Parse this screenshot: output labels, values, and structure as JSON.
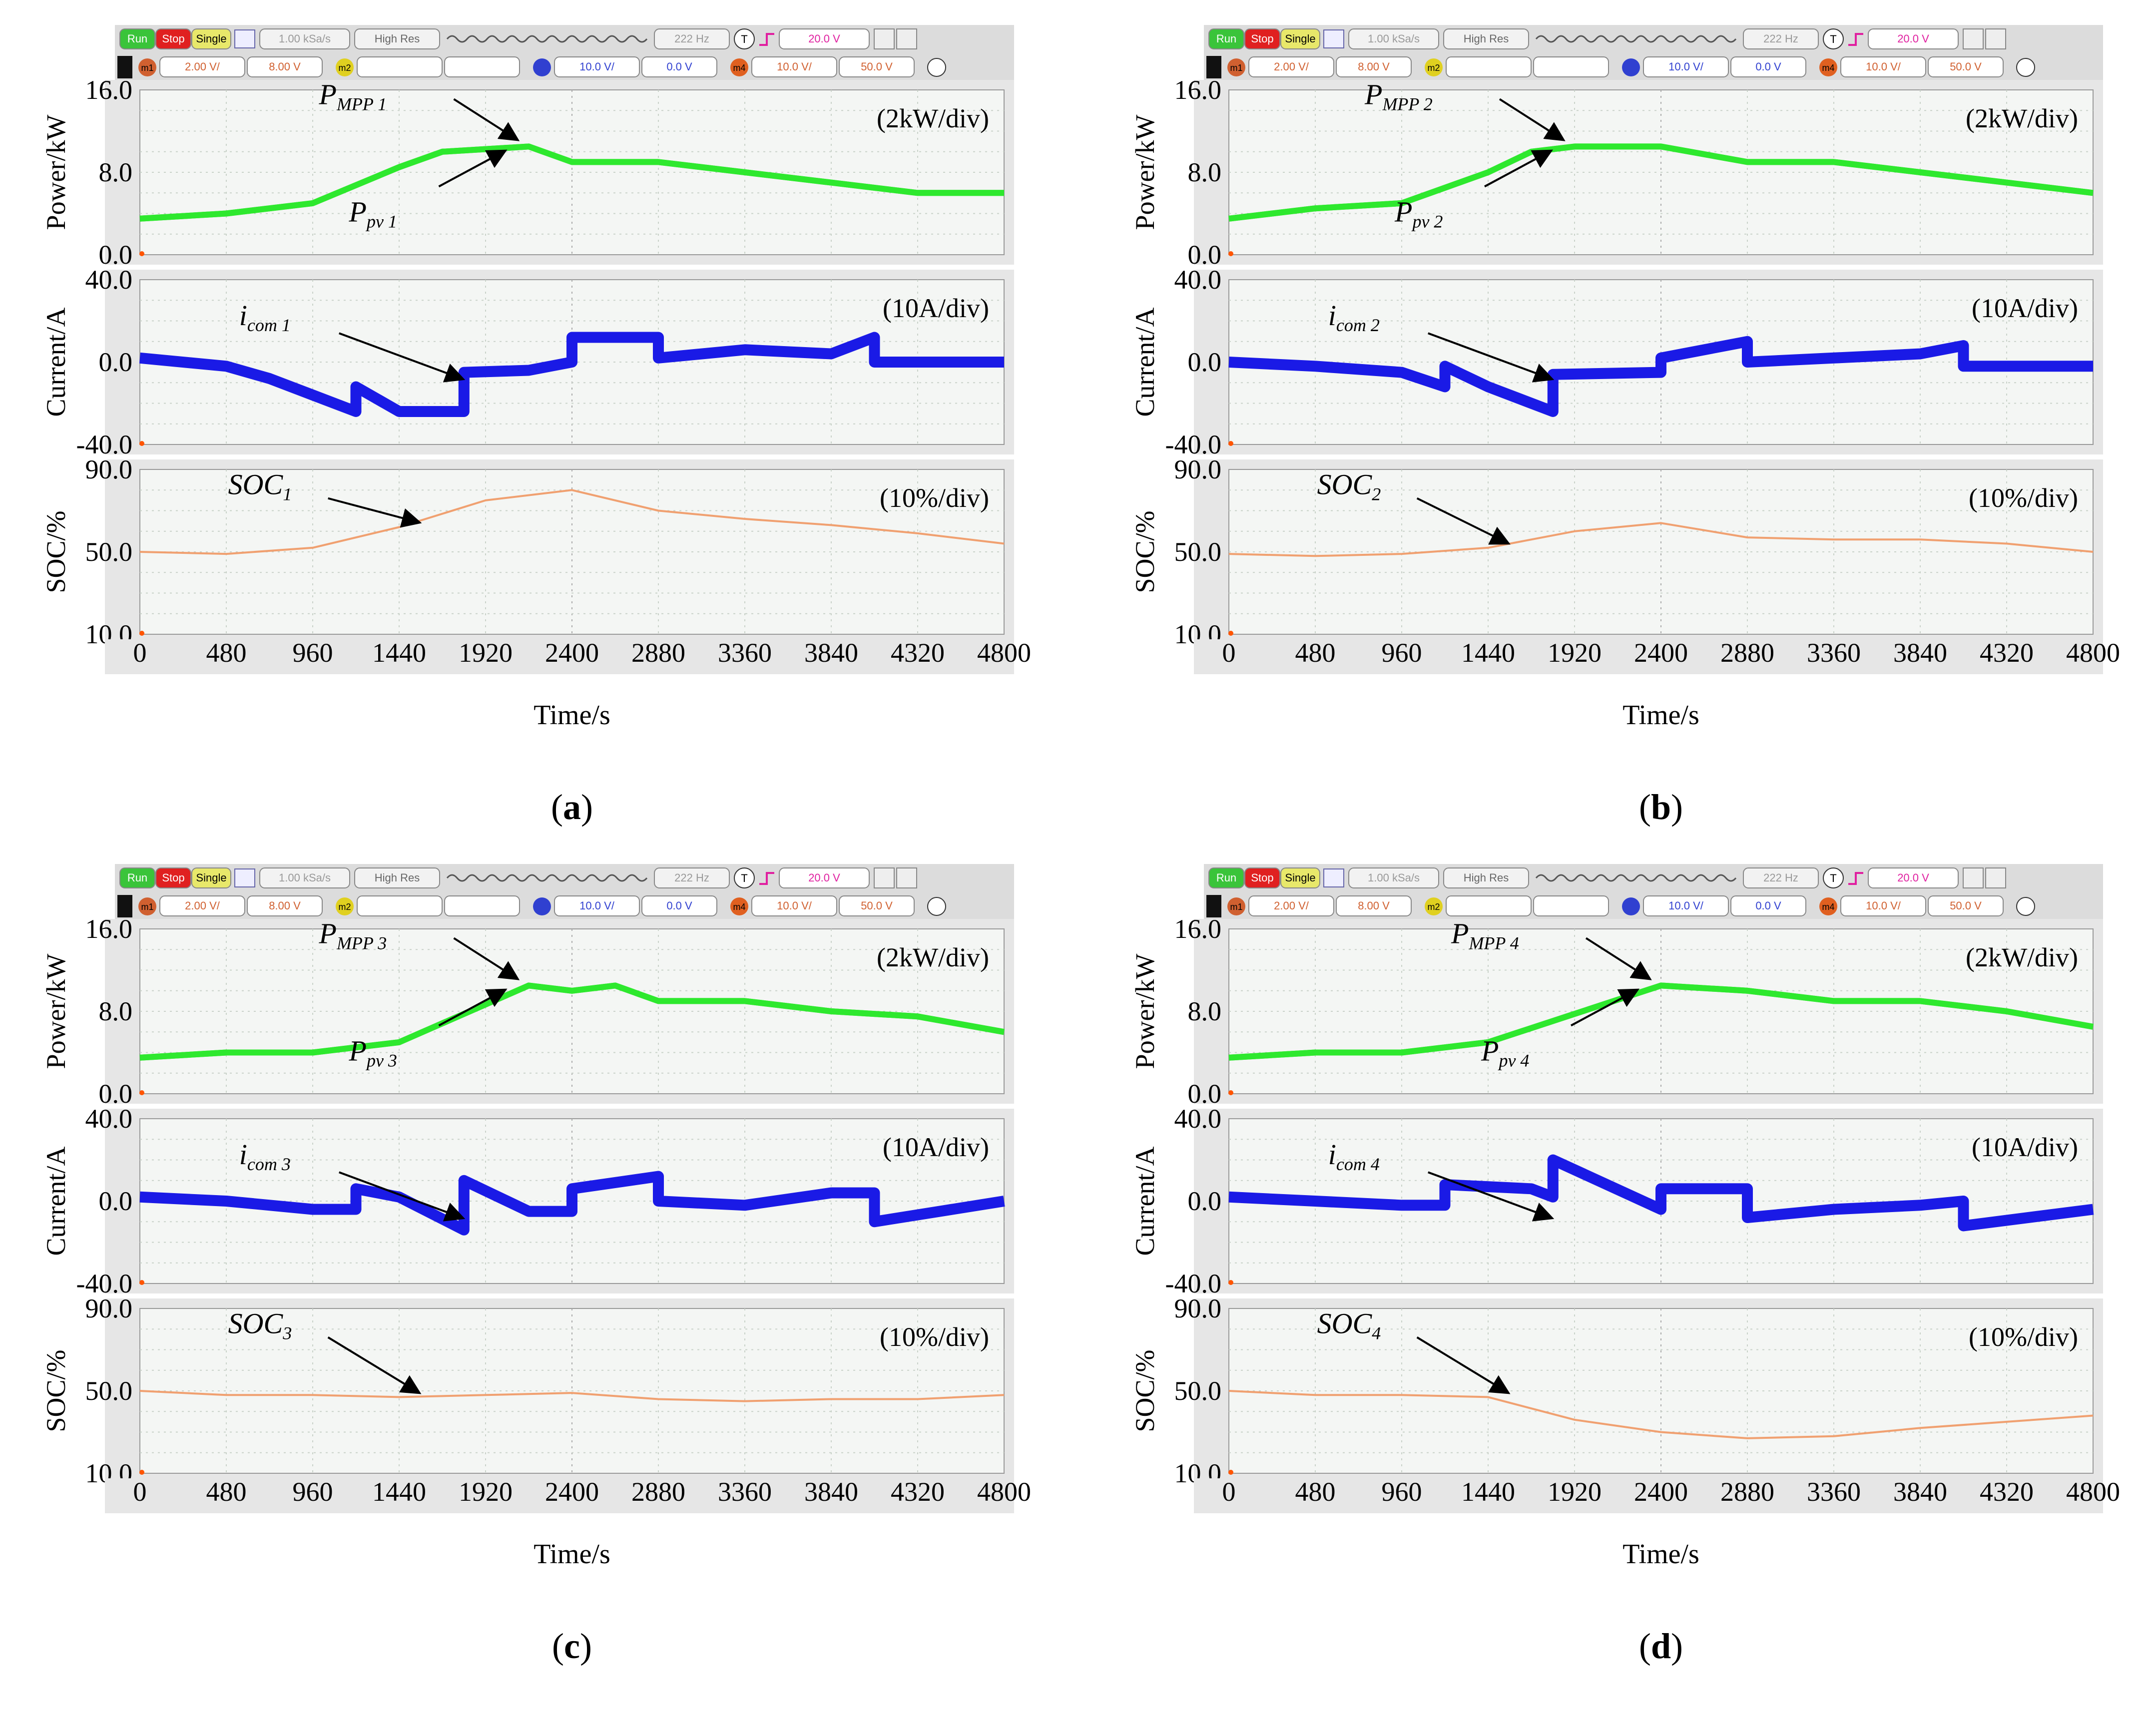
{
  "figure": {
    "toolbar": {
      "run": "Run",
      "stop": "Stop",
      "single": "Single",
      "sample_rate": "1.00 kSa/s",
      "mode": "High Res",
      "freq": "222 Hz",
      "trigger_icon": "T",
      "trigger_level": "20.0 V",
      "channels": [
        {
          "badge": "m1",
          "scale": "2.00 V/",
          "offset": "8.00 V"
        },
        {
          "badge": "m2",
          "scale": "",
          "offset": ""
        },
        {
          "badge": "",
          "scale": "10.0 V/",
          "offset": "0.0 V"
        },
        {
          "badge": "m4",
          "scale": "10.0 V/",
          "offset": "50.0 V"
        }
      ]
    },
    "axis_labels": {
      "power": "Power/kW",
      "current": "Current/A",
      "soc": "SOC/%",
      "time": "Time/s"
    },
    "div_labels": {
      "power": "(2kW/div)",
      "current": "(10A/div)",
      "soc": "(10%/div)"
    },
    "panels": [
      {
        "id": "a",
        "caption": "a",
        "num": "1",
        "annotations": {
          "mpp": "MPP 1",
          "pv": "pv 1",
          "icom": "com 1",
          "soc": "1"
        }
      },
      {
        "id": "b",
        "caption": "b",
        "num": "2",
        "annotations": {
          "mpp": "MPP 2",
          "pv": "pv 2",
          "icom": "com 2",
          "soc": "2"
        }
      },
      {
        "id": "c",
        "caption": "c",
        "num": "3",
        "annotations": {
          "mpp": "MPP 3",
          "pv": "pv 3",
          "icom": "com 3",
          "soc": "3"
        }
      },
      {
        "id": "d",
        "caption": "d",
        "num": "4",
        "annotations": {
          "mpp": "MPP 4",
          "pv": "pv 4",
          "icom": "com 4",
          "soc": "4"
        }
      }
    ],
    "colors": {
      "power": "#2ee82e",
      "current": "#1a1ae6",
      "soc": "#f0a070",
      "grid": "#c9d2c9",
      "plot_bg": "#f4f6f4"
    }
  },
  "chart_data": [
    {
      "type": "line",
      "panel": "a",
      "x_ticks": [
        "0",
        "480",
        "960",
        "1440",
        "1920",
        "2400",
        "2880",
        "3360",
        "3840",
        "4320",
        "4800"
      ],
      "xlim": [
        0,
        4800
      ],
      "xlabel": "Time/s",
      "power": {
        "ylabel": "Power/kW",
        "ylim": [
          0,
          16
        ],
        "y_ticks": [
          "0.0",
          "8.0",
          "16.0"
        ],
        "series": [
          {
            "name": "P_MPP1",
            "x": [
              0,
              480,
              960,
              1440,
              1680,
              2160,
              2400,
              2880,
              3360,
              3840,
              4320,
              4800
            ],
            "y": [
              3.5,
              4,
              5,
              8.5,
              10,
              10.5,
              9,
              9,
              8,
              7,
              6,
              6
            ]
          },
          {
            "name": "P_pv1",
            "x": [
              0,
              480,
              960,
              1440,
              1680,
              2160,
              2400,
              2880,
              3360,
              3840,
              4320,
              4800
            ],
            "y": [
              3.5,
              4,
              5,
              8.5,
              10,
              10.5,
              9,
              9,
              8,
              7,
              6,
              6
            ]
          }
        ]
      },
      "current": {
        "ylabel": "Current/A",
        "ylim": [
          -40,
          40
        ],
        "y_ticks": [
          "-40.0",
          "0.0",
          "40.0"
        ],
        "series": [
          {
            "name": "i_com1",
            "x": [
              0,
              480,
              720,
              1200,
              1200,
              1440,
              1800,
              1800,
              2160,
              2400,
              2400,
              2880,
              2880,
              3360,
              3840,
              4080,
              4080,
              4800
            ],
            "y": [
              2,
              -2,
              -8,
              -24,
              -12,
              -24,
              -24,
              -5,
              -4,
              0,
              12,
              12,
              2,
              6,
              4,
              12,
              0,
              0
            ]
          }
        ]
      },
      "soc": {
        "ylabel": "SOC/%",
        "ylim": [
          10,
          90
        ],
        "y_ticks": [
          "10.0",
          "50.0",
          "90.0"
        ],
        "series": [
          {
            "name": "SOC1",
            "x": [
              0,
              480,
              960,
              1440,
              1920,
              2400,
              2880,
              3360,
              3840,
              4320,
              4800
            ],
            "y": [
              50,
              49,
              52,
              62,
              75,
              80,
              70,
              66,
              63,
              59,
              54
            ]
          }
        ]
      }
    },
    {
      "type": "line",
      "panel": "b",
      "x_ticks": [
        "0",
        "480",
        "960",
        "1440",
        "1920",
        "2400",
        "2880",
        "3360",
        "3840",
        "4320",
        "4800"
      ],
      "xlim": [
        0,
        4800
      ],
      "xlabel": "Time/s",
      "power": {
        "ylabel": "Power/kW",
        "ylim": [
          0,
          16
        ],
        "y_ticks": [
          "0.0",
          "8.0",
          "16.0"
        ],
        "series": [
          {
            "name": "P_MPP2",
            "x": [
              0,
              480,
              960,
              1440,
              1680,
              1920,
              2400,
              2880,
              3360,
              3840,
              4320,
              4800
            ],
            "y": [
              3.5,
              4.5,
              5,
              8,
              10,
              10.5,
              10.5,
              9,
              9,
              8,
              7,
              6
            ]
          },
          {
            "name": "P_pv2",
            "x": [
              0,
              480,
              960,
              1440,
              1680,
              1920,
              2400,
              2880,
              3360,
              3840,
              4320,
              4800
            ],
            "y": [
              3.5,
              4.5,
              5,
              8,
              10,
              10.5,
              10.5,
              9,
              9,
              8,
              7,
              6
            ]
          }
        ]
      },
      "current": {
        "ylabel": "Current/A",
        "ylim": [
          -40,
          40
        ],
        "y_ticks": [
          "-40.0",
          "0.0",
          "40.0"
        ],
        "series": [
          {
            "name": "i_com2",
            "x": [
              0,
              480,
              960,
              1200,
              1200,
              1440,
              1800,
              1800,
              2400,
              2400,
              2880,
              2880,
              3360,
              3840,
              4080,
              4080,
              4800
            ],
            "y": [
              0,
              -2,
              -5,
              -12,
              -2,
              -12,
              -24,
              -6,
              -5,
              2,
              10,
              0,
              2,
              4,
              8,
              -2,
              -2
            ]
          }
        ]
      },
      "soc": {
        "ylabel": "SOC/%",
        "ylim": [
          10,
          90
        ],
        "y_ticks": [
          "10.0",
          "50.0",
          "90.0"
        ],
        "series": [
          {
            "name": "SOC2",
            "x": [
              0,
              480,
              960,
              1440,
              1920,
              2400,
              2880,
              3360,
              3840,
              4320,
              4800
            ],
            "y": [
              49,
              48,
              49,
              52,
              60,
              64,
              57,
              56,
              56,
              54,
              50
            ]
          }
        ]
      }
    },
    {
      "type": "line",
      "panel": "c",
      "x_ticks": [
        "0",
        "480",
        "960",
        "1440",
        "1920",
        "2400",
        "2880",
        "3360",
        "3840",
        "4320",
        "4800"
      ],
      "xlim": [
        0,
        4800
      ],
      "xlabel": "Time/s",
      "power": {
        "ylabel": "Power/kW",
        "ylim": [
          0,
          16
        ],
        "y_ticks": [
          "0.0",
          "8.0",
          "16.0"
        ],
        "series": [
          {
            "name": "P_MPP3",
            "x": [
              0,
              480,
              960,
              1440,
              2160,
              2400,
              2640,
              2880,
              3360,
              3840,
              4320,
              4800
            ],
            "y": [
              3.5,
              4,
              4,
              5,
              10.5,
              10,
              10.5,
              9,
              9,
              8,
              7.5,
              6
            ]
          },
          {
            "name": "P_pv3",
            "x": [
              0,
              480,
              960,
              1440,
              2160,
              2400,
              2640,
              2880,
              3360,
              3840,
              4320,
              4800
            ],
            "y": [
              3.5,
              4,
              4,
              5,
              10.5,
              10,
              10.5,
              9,
              9,
              8,
              7.5,
              6
            ]
          }
        ]
      },
      "current": {
        "ylabel": "Current/A",
        "ylim": [
          -40,
          40
        ],
        "y_ticks": [
          "-40.0",
          "0.0",
          "40.0"
        ],
        "series": [
          {
            "name": "i_com3",
            "x": [
              0,
              480,
              960,
              1200,
              1200,
              1440,
              1800,
              1800,
              2160,
              2400,
              2400,
              2880,
              2880,
              3360,
              3840,
              4080,
              4080,
              4800
            ],
            "y": [
              2,
              0,
              -4,
              -4,
              6,
              2,
              -14,
              10,
              -5,
              -5,
              6,
              12,
              0,
              -2,
              4,
              4,
              -10,
              0
            ]
          }
        ]
      },
      "soc": {
        "ylabel": "SOC/%",
        "ylim": [
          10,
          90
        ],
        "y_ticks": [
          "10.0",
          "50.0",
          "90.0"
        ],
        "series": [
          {
            "name": "SOC3",
            "x": [
              0,
              480,
              960,
              1440,
              1920,
              2400,
              2880,
              3360,
              3840,
              4320,
              4800
            ],
            "y": [
              50,
              48,
              48,
              47,
              48,
              49,
              46,
              45,
              46,
              46,
              48
            ]
          }
        ]
      }
    },
    {
      "type": "line",
      "panel": "d",
      "x_ticks": [
        "0",
        "480",
        "960",
        "1440",
        "1920",
        "2400",
        "2880",
        "3360",
        "3840",
        "4320",
        "4800"
      ],
      "xlim": [
        0,
        4800
      ],
      "xlabel": "Time/s",
      "power": {
        "ylabel": "Power/kW",
        "ylim": [
          0,
          16
        ],
        "y_ticks": [
          "0.0",
          "8.0",
          "16.0"
        ],
        "series": [
          {
            "name": "P_MPP4",
            "x": [
              0,
              480,
              960,
              1440,
              2400,
              2880,
              3360,
              3840,
              4320,
              4800
            ],
            "y": [
              3.5,
              4,
              4,
              5,
              10.5,
              10,
              9,
              9,
              8,
              6.5
            ]
          },
          {
            "name": "P_pv4",
            "x": [
              0,
              480,
              960,
              1440,
              2400,
              2880,
              3360,
              3840,
              4320,
              4800
            ],
            "y": [
              3.5,
              4,
              4,
              5,
              10.5,
              10,
              9,
              9,
              8,
              6.5
            ]
          }
        ]
      },
      "current": {
        "ylabel": "Current/A",
        "ylim": [
          -40,
          40
        ],
        "y_ticks": [
          "-40.0",
          "0.0",
          "40.0"
        ],
        "series": [
          {
            "name": "i_com4",
            "x": [
              0,
              480,
              960,
              1200,
              1200,
              1680,
              1800,
              1800,
              2400,
              2400,
              2880,
              2880,
              3360,
              3840,
              4080,
              4080,
              4800
            ],
            "y": [
              2,
              0,
              -2,
              -2,
              8,
              6,
              2,
              20,
              -4,
              6,
              6,
              -8,
              -4,
              -2,
              0,
              -12,
              -4
            ]
          }
        ]
      },
      "soc": {
        "ylabel": "SOC/%",
        "ylim": [
          10,
          90
        ],
        "y_ticks": [
          "10.0",
          "50.0",
          "90.0"
        ],
        "series": [
          {
            "name": "SOC4",
            "x": [
              0,
              480,
              960,
              1440,
              1920,
              2400,
              2880,
              3360,
              3840,
              4320,
              4800
            ],
            "y": [
              50,
              48,
              48,
              47,
              36,
              30,
              27,
              28,
              32,
              35,
              38
            ]
          }
        ]
      }
    }
  ]
}
